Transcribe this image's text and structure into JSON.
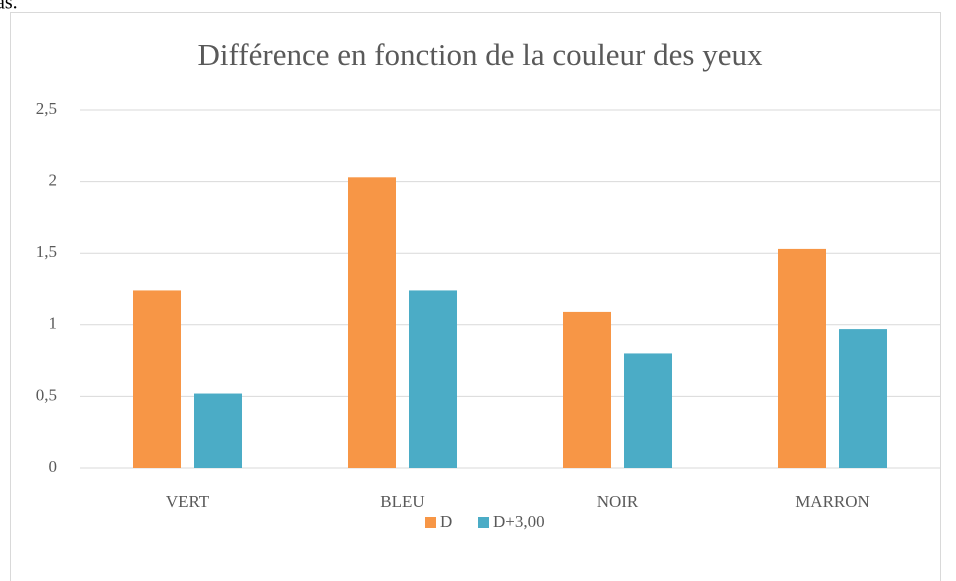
{
  "fragment": "as.",
  "chart_data": {
    "type": "bar",
    "title": "Différence en fonction de la couleur des yeux",
    "categories": [
      "VERT",
      "BLEU",
      "NOIR",
      "MARRON"
    ],
    "series": [
      {
        "name": "D",
        "color": "#f79646",
        "values": [
          1.24,
          2.03,
          1.09,
          1.53
        ]
      },
      {
        "name": "D+3,00",
        "color": "#4bacc6",
        "values": [
          0.52,
          1.24,
          0.8,
          0.97
        ]
      }
    ],
    "ylim": [
      0,
      2.5
    ],
    "yticks": [
      0,
      {
        "value": 0.5,
        "label": "0,5"
      },
      1,
      {
        "value": 1.5,
        "label": "1,5"
      },
      2,
      {
        "value": 2.5,
        "label": "2,5"
      }
    ],
    "grid": true,
    "legend": "bottom"
  }
}
